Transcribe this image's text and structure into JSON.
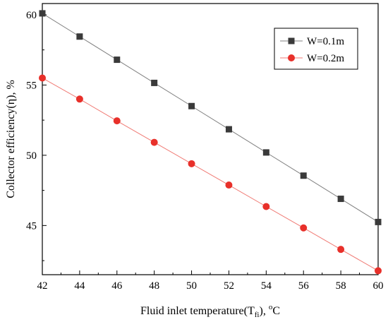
{
  "chart_data": {
    "type": "line",
    "title": "",
    "xlabel": {
      "main": "Fluid inlet temperature(T",
      "sub": "fi",
      "unit_prefix": "), ",
      "unit_sup": "o",
      "unit": "C"
    },
    "ylabel": "Collector efficiency(η), %",
    "xlim": [
      42,
      60
    ],
    "ylim": [
      41.5,
      60.8
    ],
    "x_ticks": [
      42,
      44,
      46,
      48,
      50,
      52,
      54,
      56,
      58,
      60
    ],
    "y_ticks": [
      45,
      50,
      55,
      60
    ],
    "grid": false,
    "legend_position": "top-right",
    "x": [
      42,
      44,
      46,
      48,
      50,
      52,
      54,
      56,
      58,
      60
    ],
    "series": [
      {
        "name": "W=0.1m",
        "marker": "square",
        "color": "#3a3a3a",
        "line_color": "#808080",
        "values": [
          60.1,
          58.45,
          56.8,
          55.15,
          53.5,
          51.85,
          50.2,
          48.55,
          46.9,
          45.25
        ]
      },
      {
        "name": "W=0.2m",
        "marker": "circle",
        "color": "#e8302a",
        "line_color": "#f07a74",
        "values": [
          55.5,
          54.0,
          52.45,
          50.92,
          49.4,
          47.88,
          46.35,
          44.83,
          43.3,
          41.78
        ]
      }
    ]
  }
}
